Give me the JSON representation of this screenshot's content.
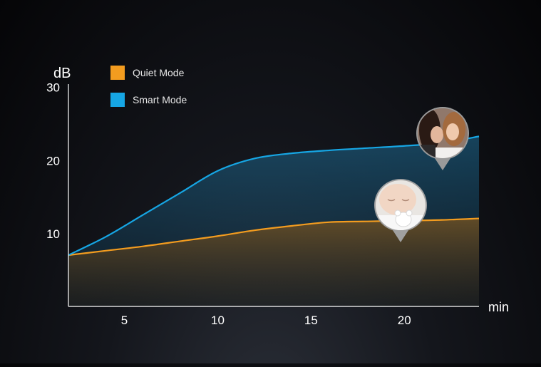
{
  "chart_data": {
    "type": "area",
    "ylabel": "dB",
    "xlabel": "min",
    "xlim": [
      2,
      24
    ],
    "ylim": [
      0,
      35
    ],
    "yticks": [
      10,
      20,
      30
    ],
    "xticks": [
      5,
      10,
      15,
      20
    ],
    "legend_position": "top-left",
    "series": [
      {
        "name": "Quiet Mode",
        "color": "#f39c1f",
        "x": [
          2,
          4,
          6,
          8,
          10,
          12,
          14,
          16,
          18,
          20,
          22,
          24
        ],
        "values": [
          7,
          7.6,
          8.2,
          8.9,
          9.6,
          10.4,
          11.0,
          11.5,
          11.6,
          11.7,
          11.8,
          12.0
        ]
      },
      {
        "name": "Smart Mode",
        "color": "#16a6e4",
        "x": [
          2,
          4,
          6,
          8,
          10,
          12,
          14,
          16,
          18,
          20,
          22,
          24
        ],
        "values": [
          7,
          9.5,
          12.5,
          15.5,
          18.5,
          20.2,
          20.9,
          21.3,
          21.6,
          21.9,
          22.3,
          23.2
        ]
      }
    ],
    "annotations": [
      {
        "name": "two-women-whispering-photo-pin",
        "x": 22.5,
        "y": 22.5
      },
      {
        "name": "sleeping-baby-photo-pin",
        "x": 20,
        "y": 11.7
      }
    ]
  }
}
